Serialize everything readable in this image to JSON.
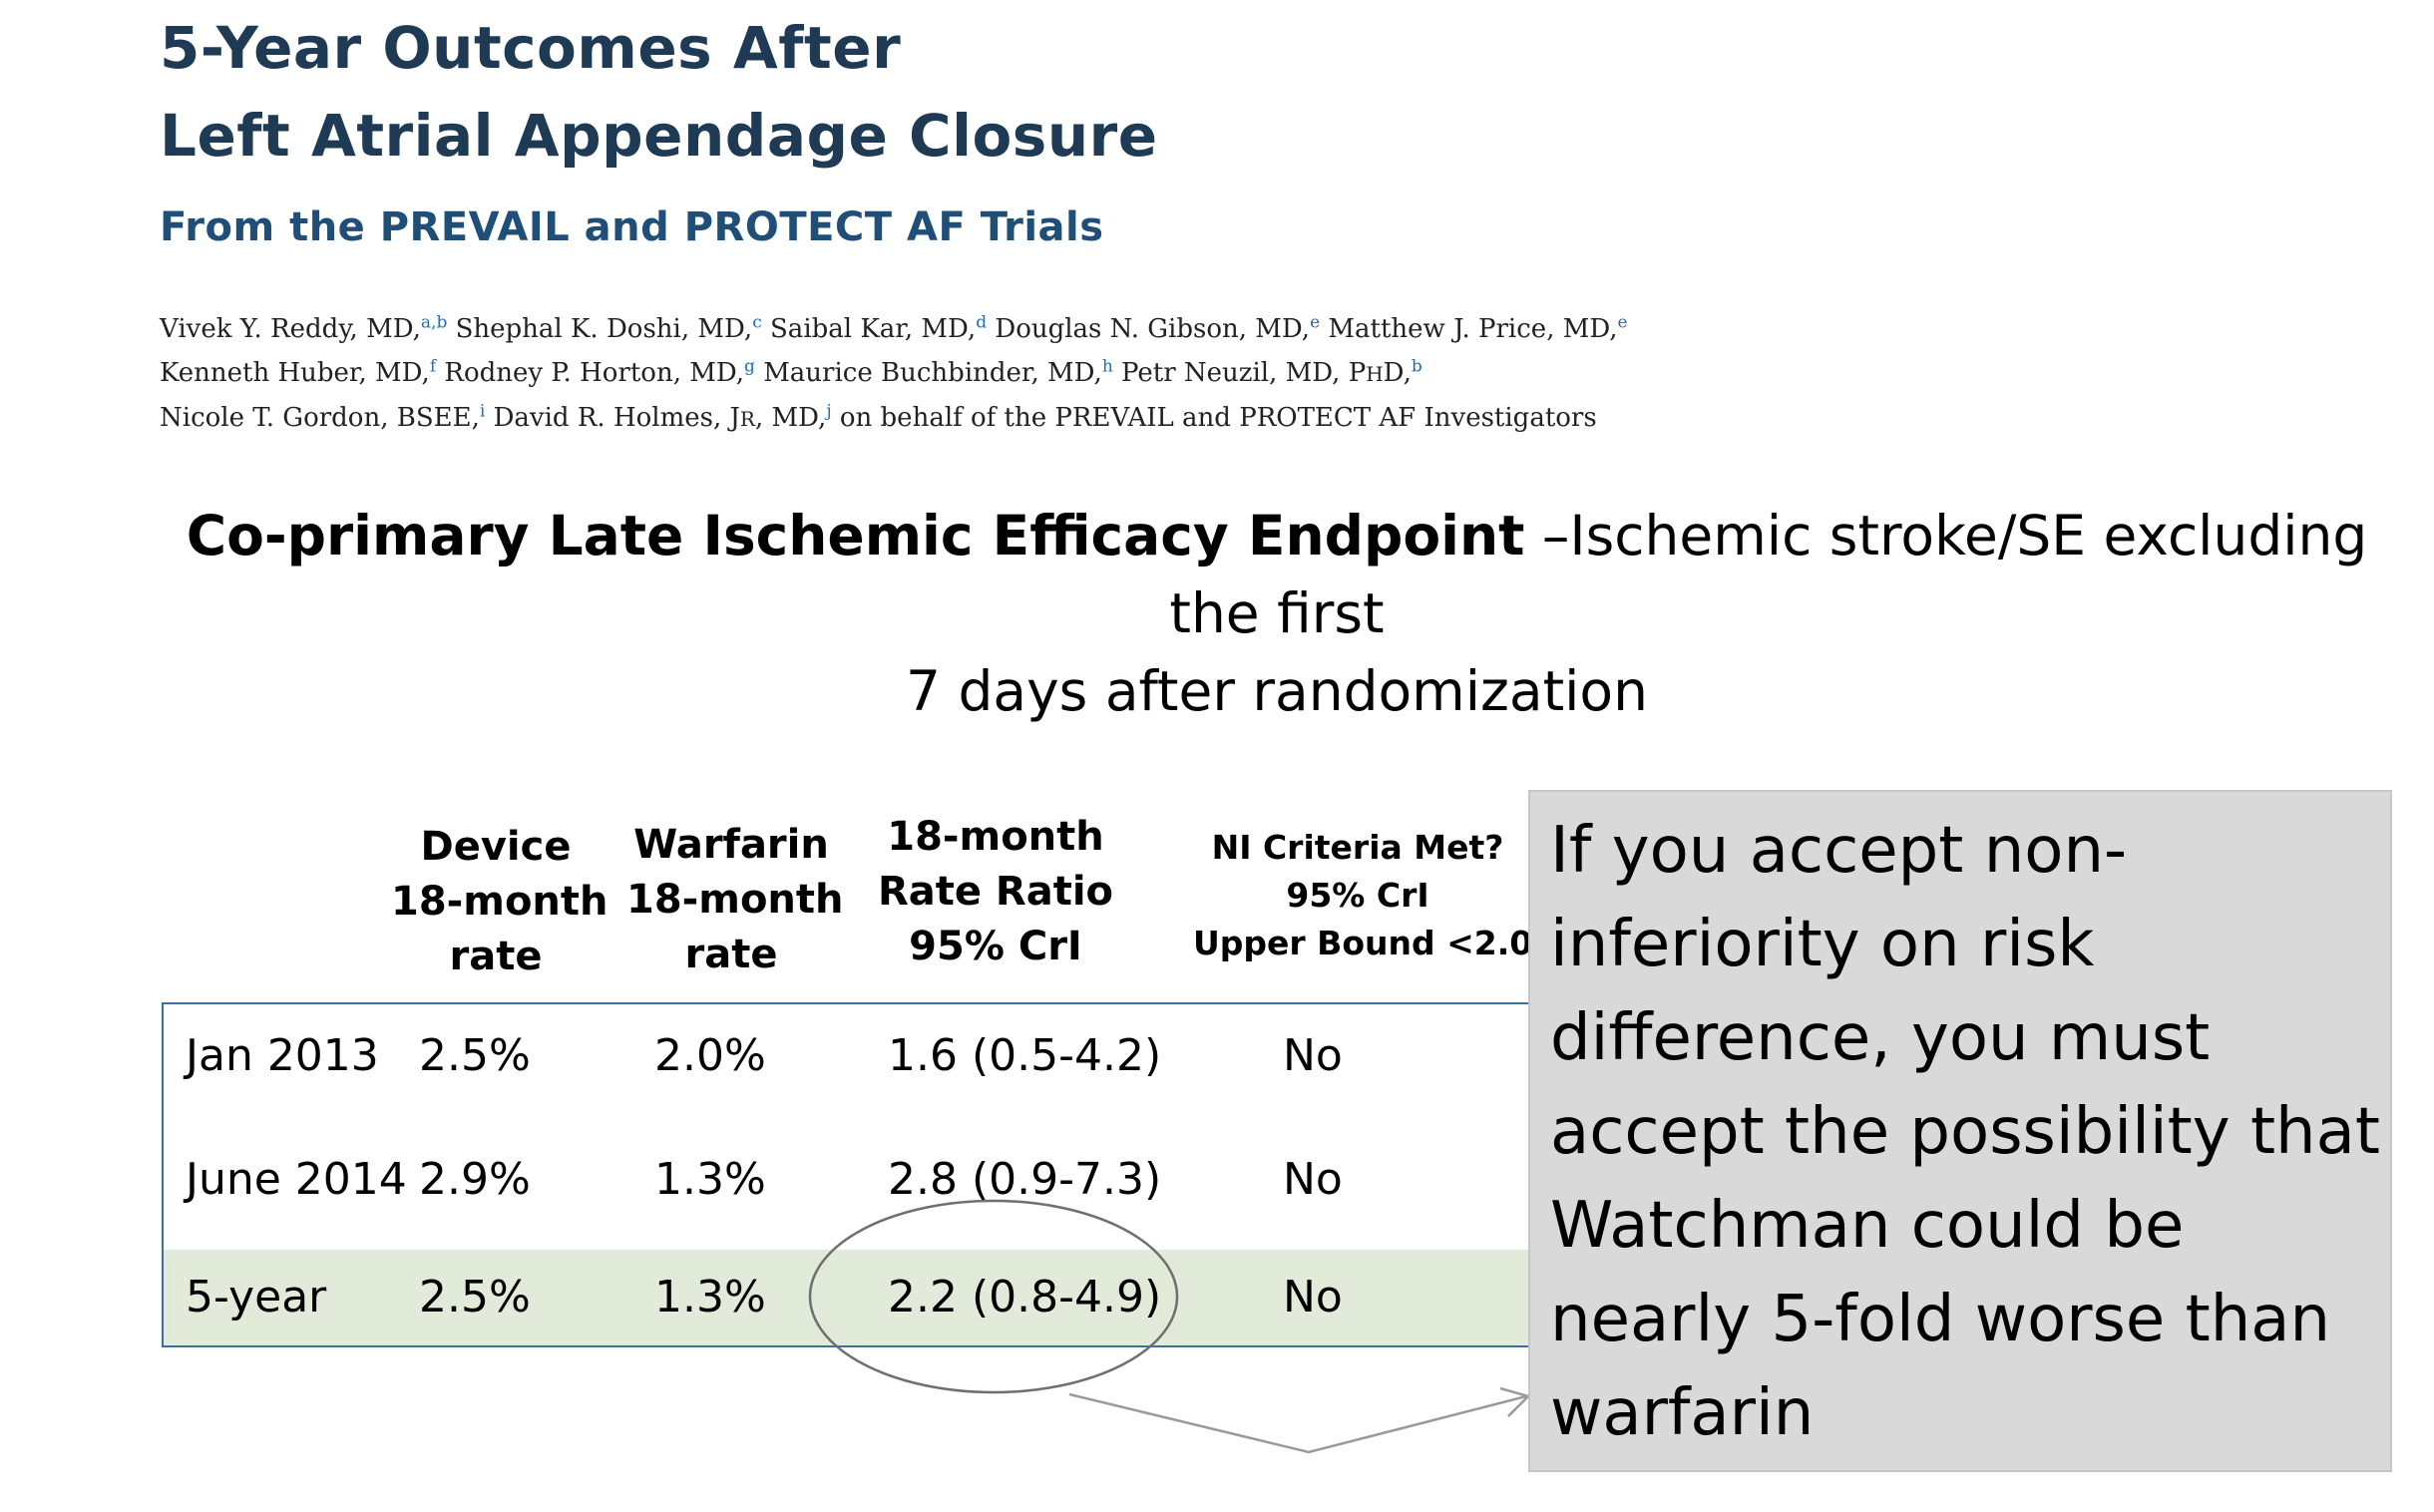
{
  "article": {
    "title_line1": "5-Year Outcomes After",
    "title_line2": "Left Atrial Appendage Closure",
    "subtitle": "From the PREVAIL and PROTECT AF Trials",
    "authors": [
      {
        "name": "Vivek Y. Reddy, MD,",
        "sup": "a,b"
      },
      {
        "name": "Shephal K. Doshi, MD,",
        "sup": "c"
      },
      {
        "name": "Saibal Kar, MD,",
        "sup": "d"
      },
      {
        "name": "Douglas N. Gibson, MD,",
        "sup": "e"
      },
      {
        "name": "Matthew J. Price, MD,",
        "sup": "e"
      },
      {
        "name": "Kenneth Huber, MD,",
        "sup": "f"
      },
      {
        "name": "Rodney P. Horton, MD,",
        "sup": "g"
      },
      {
        "name": "Maurice Buchbinder, MD,",
        "sup": "h"
      },
      {
        "name": "Petr Neuzil, MD, P",
        "sc": "H",
        "name_tail": "D,",
        "sup": "b"
      },
      {
        "name": "Nicole T. Gordon, BSEE,",
        "sup": "i"
      },
      {
        "name": "David R. Holmes, J",
        "sc": "R",
        "name_tail": ", MD,",
        "sup": "j"
      }
    ],
    "authors_tail": "on behalf of the PREVAIL and PROTECT AF Investigators"
  },
  "endpoint": {
    "bold": "Co-primary Late Ischemic Efficacy Endpoint",
    "rest_line1": " –Ischemic stroke/SE excluding the first",
    "line2": "7 days after randomization"
  },
  "table": {
    "headers": {
      "device": [
        "Device",
        "18-month",
        "rate"
      ],
      "warfarin": [
        "Warfarin",
        "18-month",
        "rate"
      ],
      "ratio": [
        "18-month",
        "Rate Ratio",
        "95% CrI"
      ],
      "ni": [
        "NI Criteria Met?",
        "95% CrI",
        "Upper Bound <2.0"
      ]
    },
    "rows": [
      {
        "label": "Jan 2013",
        "device": "2.5%",
        "warfarin": "2.0%",
        "ratio": "1.6 (0.5-4.2)",
        "ni": "No"
      },
      {
        "label": "June 2014",
        "device": "2.9%",
        "warfarin": "1.3%",
        "ratio": "2.8 (0.9-7.3)",
        "ni": "No"
      },
      {
        "label": "5-year",
        "device": "2.5%",
        "warfarin": "1.3%",
        "ratio": "2.2 (0.8-4.9)",
        "ni": "No"
      }
    ],
    "highlight_color": "#e2ebd9",
    "border_color": "#3d6f9e"
  },
  "callout": {
    "text": "If you accept non-inferiority on risk difference, you must accept the possibility that Watchman could be nearly 5-fold worse than warfarin",
    "background": "#d9d9d9"
  },
  "colors": {
    "title": "#1e3a54",
    "subtitle": "#1f4e79",
    "superscript": "#1f6fb5"
  }
}
